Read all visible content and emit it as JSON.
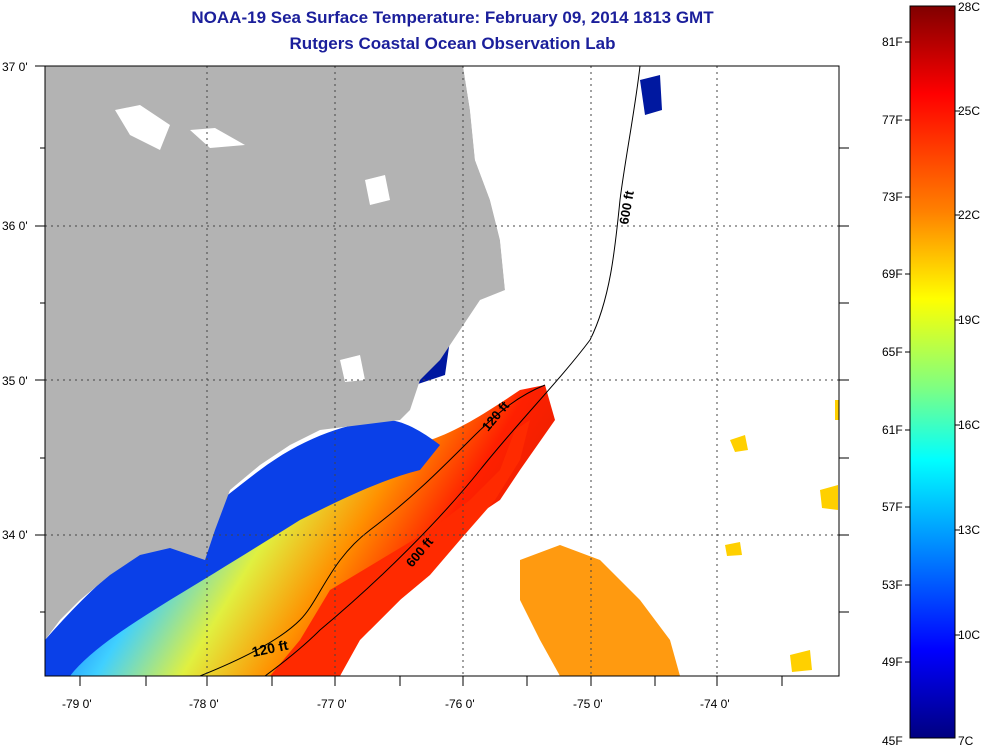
{
  "header": {
    "title": "NOAA-19 Sea Surface Temperature:  February 09, 2014 1813 GMT",
    "subtitle": "Rutgers Coastal Ocean Observation Lab"
  },
  "map": {
    "lat_labels": [
      "37 0'",
      "36 0'",
      "35 0'",
      "34 0'"
    ],
    "lon_labels": [
      "-79 0'",
      "-78 0'",
      "-77 0'",
      "-76 0'",
      "-75 0'",
      "-74 0'"
    ],
    "contours": [
      "600 ft",
      "120 ft",
      "600 ft",
      "120 ft"
    ],
    "colors": {
      "land": "#b3b3b3",
      "no_data": "#ffffff"
    }
  },
  "colorbar": {
    "fahrenheit": [
      "81F",
      "77F",
      "73F",
      "69F",
      "65F",
      "61F",
      "57F",
      "53F",
      "49F",
      "45F"
    ],
    "celsius": [
      "28C",
      "25C",
      "22C",
      "19C",
      "16C",
      "13C",
      "10C",
      "7C"
    ],
    "colors": [
      "#800000",
      "#ff0000",
      "#ff8000",
      "#ffff00",
      "#80ff80",
      "#00ffff",
      "#0080ff",
      "#0000ff",
      "#000080"
    ]
  }
}
